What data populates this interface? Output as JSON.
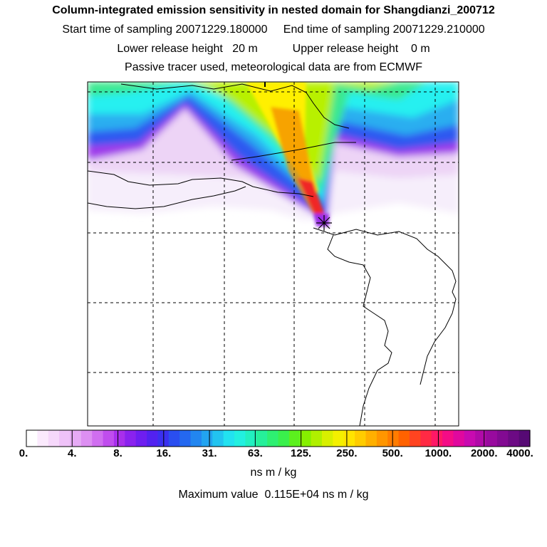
{
  "header": {
    "title": "Column-integrated emission sensitivity in nested domain for Shangdianzi_200712",
    "sampling": "Start time of sampling 20071229.180000     End time of sampling 20071229.210000",
    "release": "Lower release height   20 m           Upper release height    0 m",
    "tracer": "Passive tracer used, meteorological data are from ECMWF"
  },
  "map": {
    "receptor": "Shangdianzi",
    "receptor_marker": "asterisk-icon",
    "plume_colors": {
      "white": "#f5eefa",
      "light_pink": "#ecc8f4",
      "purple": "#9b2fe8",
      "violet": "#7b22f0",
      "blue": "#2a56f0",
      "light_blue": "#28aaf0",
      "cyan": "#24f0f0",
      "teal": "#33e0a8",
      "green": "#44f000",
      "yellow_green": "#c8f000",
      "yellow": "#fff000",
      "orange": "#f59000",
      "red": "#f02828"
    }
  },
  "colorbar": {
    "colors": [
      "#ffffff",
      "#fbeafd",
      "#f6d8fb",
      "#efc2f8",
      "#e6aaf5",
      "#dd8ff2",
      "#d06ef0",
      "#c04dee",
      "#a82fec",
      "#8a22ee",
      "#6e1ef0",
      "#5222f0",
      "#3a30f0",
      "#2a4ef0",
      "#2468f0",
      "#2286f0",
      "#22a4f0",
      "#22c4f0",
      "#22e2f0",
      "#22f0e0",
      "#22f0c0",
      "#26f09a",
      "#2ef072",
      "#3af04c",
      "#5cf01e",
      "#86f000",
      "#b0f000",
      "#d8f000",
      "#f4f000",
      "#ffe400",
      "#ffcc00",
      "#ffb000",
      "#ff9600",
      "#ff7c00",
      "#ff6200",
      "#ff4420",
      "#ff2a44",
      "#ff1866",
      "#f40c86",
      "#e0089e",
      "#c80ab0",
      "#b00aa8",
      "#980a9e",
      "#820a92",
      "#6c0a84",
      "#560a74"
    ],
    "labels": [
      "0.",
      "4.",
      "8.",
      "16.",
      "31.",
      "63.",
      "125.",
      "250.",
      "500.",
      "1000.",
      "2000.",
      "4000."
    ],
    "unit": "ns m / kg",
    "max_value": "Maximum value  0.115E+04 ns m / kg"
  }
}
